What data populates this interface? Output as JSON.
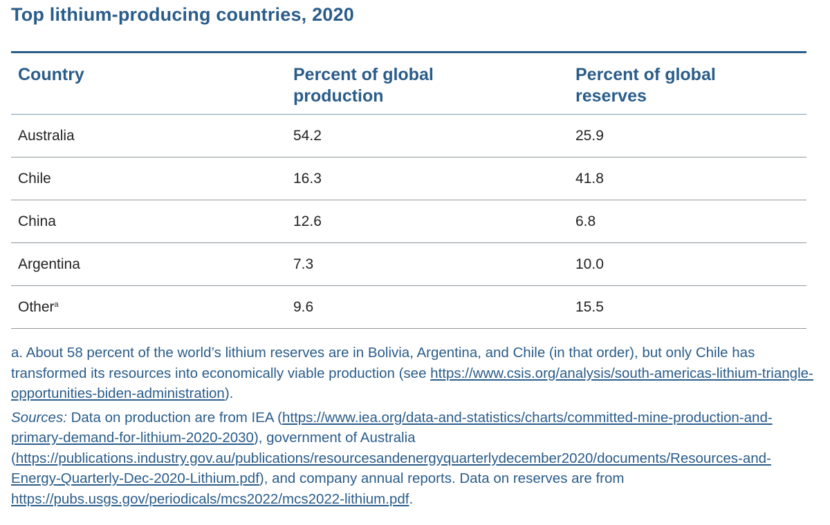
{
  "title": "Top lithium-producing countries, 2020",
  "table": {
    "headers": [
      "Country",
      "Percent of global production",
      "Percent of global reserves"
    ],
    "rows": [
      {
        "country": "Australia",
        "sup": "",
        "production": "54.2",
        "reserves": "25.9"
      },
      {
        "country": "Chile",
        "sup": "",
        "production": "16.3",
        "reserves": "41.8"
      },
      {
        "country": "China",
        "sup": "",
        "production": "12.6",
        "reserves": "6.8"
      },
      {
        "country": "Argentina",
        "sup": "",
        "production": "7.3",
        "reserves": "10.0"
      },
      {
        "country": "Other",
        "sup": "a",
        "production": "9.6",
        "reserves": "15.5"
      }
    ]
  },
  "notes": {
    "footnote_a": {
      "text1": "a. About 58 percent of the world’s lithium reserves are in Bolivia, Argentina, and Chile (in that order), but only Chile has transformed its resources into economically viable production (see ",
      "link": "https://www.csis.org/analysis/south-americas-lithium-triangle-opportunities-biden-administration",
      "text2": ")."
    },
    "sources": {
      "label": "Sources:",
      "text1": " Data on production are from IEA (",
      "link1": "https://www.iea.org/data-and-statistics/charts/committed-mine-production-and-primary-demand-for-lithium-2020-2030",
      "text2": "), government of Australia (",
      "link2": "https://publications.industry.gov.au/publications/resourcesandenergyquarterlydecember2020/documents/Resources-and-Energy-Quarterly-Dec-2020-Lithium.pdf",
      "text3": "), and company annual reports. Data on reserves are from ",
      "link3": "https://pubs.usgs.gov/periodicals/mcs2022/mcs2022-lithium.pdf",
      "text4": "."
    }
  }
}
